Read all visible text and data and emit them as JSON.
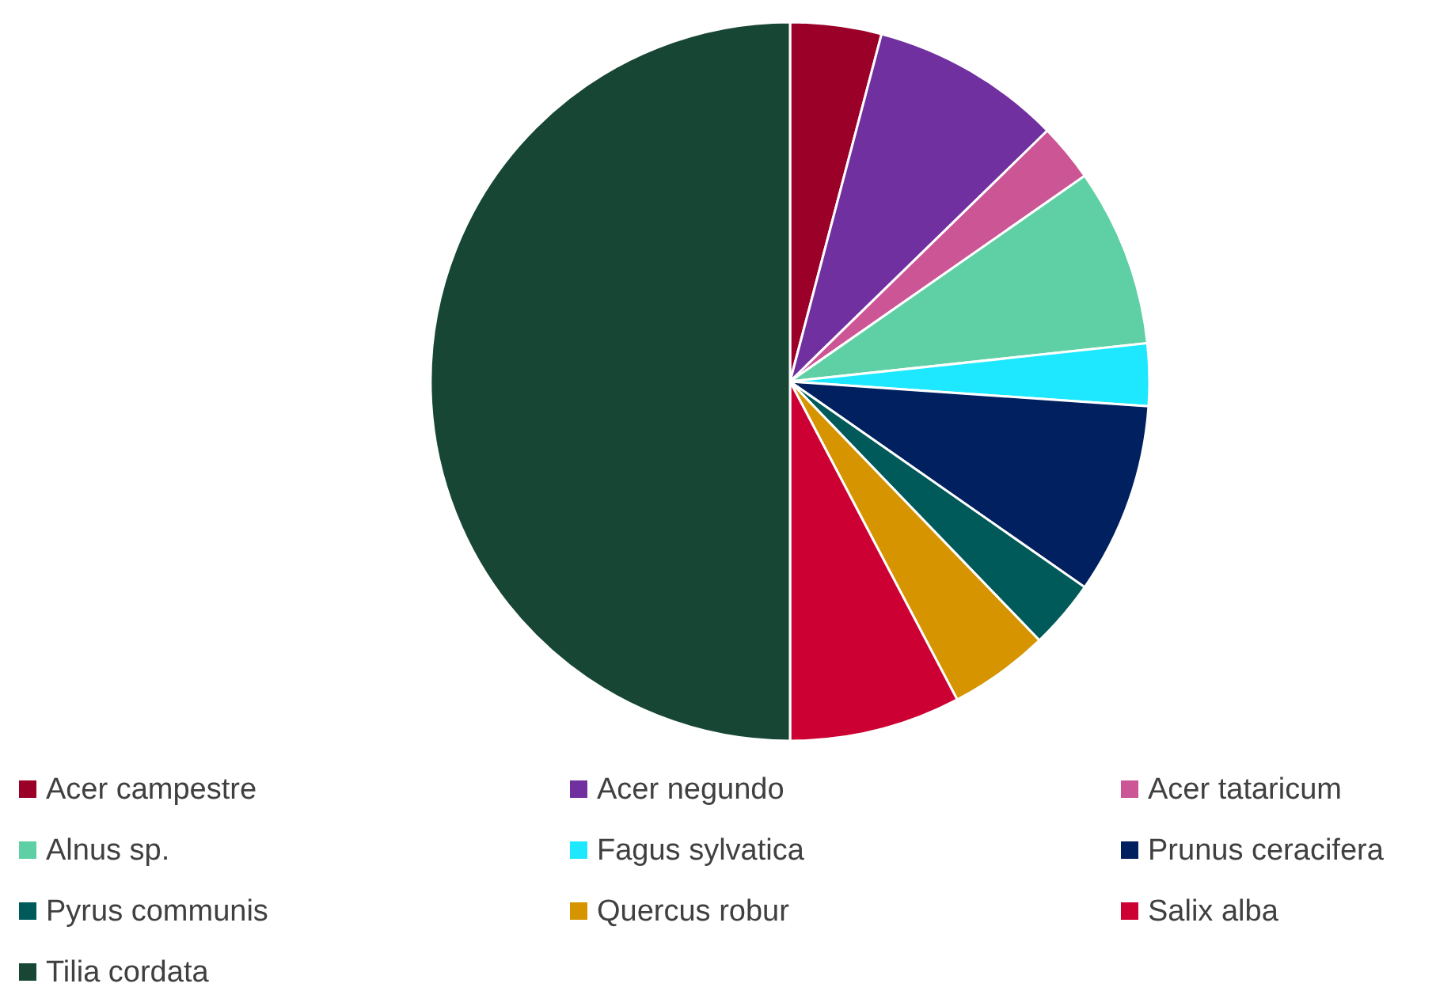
{
  "chart_data": {
    "type": "pie",
    "categories": [
      "Acer campestre",
      "Acer negundo",
      "Acer tataricum",
      "Alnus sp.",
      "Fagus sylvatica",
      "Prunus ceracifera",
      "Pyrus communis",
      "Quercus robur",
      "Salix alba",
      "Tilia cordata"
    ],
    "values": [
      4.1,
      8.6,
      2.6,
      8.0,
      2.8,
      8.6,
      3.1,
      4.5,
      7.7,
      50
    ],
    "colors": [
      "#9b0028",
      "#7030a0",
      "#cc5595",
      "#5fd0a5",
      "#1ee8ff",
      "#002060",
      "#005a5a",
      "#d59400",
      "#cc0033",
      "#174734"
    ],
    "legend": "bottom"
  }
}
